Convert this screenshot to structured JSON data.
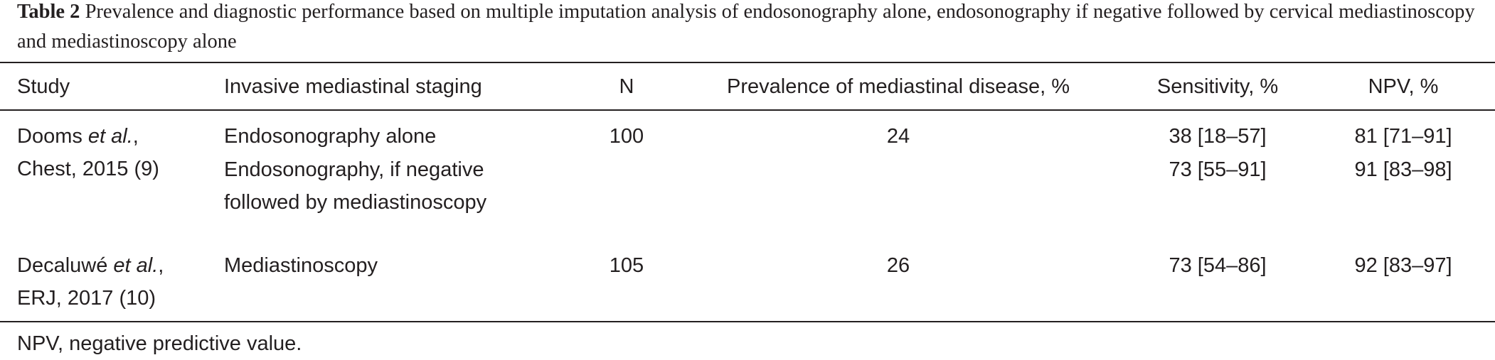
{
  "caption": {
    "label": "Table 2",
    "text": "Prevalence and diagnostic performance based on multiple imputation analysis of endosonography alone, endosonography if negative followed by cervical mediastinoscopy and mediastinoscopy alone"
  },
  "table": {
    "header": [
      "Study",
      "Invasive mediastinal staging",
      "N",
      "Prevalence of mediastinal disease, %",
      "Sensitivity, %",
      "NPV, %"
    ],
    "rows": [
      {
        "study": {
          "author": "Dooms",
          "etal": "et al.",
          "sep": ",",
          "source": "Chest, 2015 (9)"
        },
        "entries": [
          {
            "staging": "Endosonography alone",
            "n": 100,
            "prevalence": 24,
            "sensitivity": "38 [18–57]",
            "npv": "81 [71–91]"
          },
          {
            "staging": "Endosonography, if negative followed by mediastinoscopy",
            "sensitivity": "73 [55–91]",
            "npv": "91 [83–98]"
          }
        ]
      },
      {
        "study": {
          "author": "Decaluwé",
          "etal": "et al.",
          "sep": ",",
          "source": "ERJ, 2017 (10)"
        },
        "entries": [
          {
            "staging": "Mediastinoscopy",
            "n": 105,
            "prevalence": 26,
            "sensitivity": "73 [54–86]",
            "npv": "92 [83–97]"
          }
        ]
      }
    ]
  },
  "footnote": "NPV, negative predictive value."
}
